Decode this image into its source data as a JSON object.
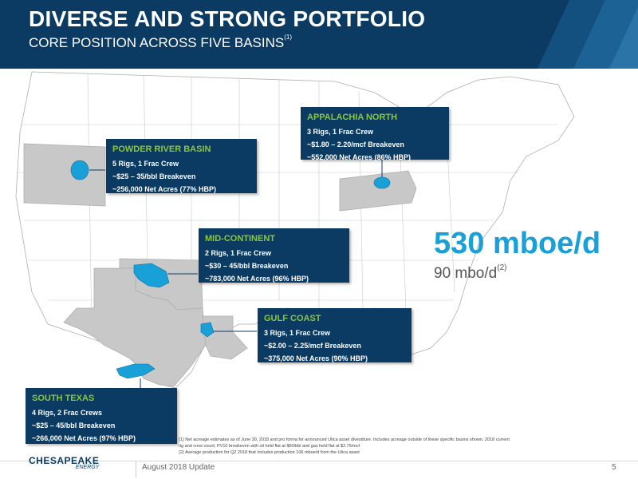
{
  "header": {
    "title": "DIVERSE AND STRONG PORTFOLIO",
    "subtitle": "CORE POSITION ACROSS FIVE BASINS",
    "subtitle_note": "(1)"
  },
  "colors": {
    "navy": "#0b3a63",
    "accent_green": "#8cc63f",
    "accent_blue": "#1aa0d8",
    "state_highlight": "#c8c8c8"
  },
  "basins": [
    {
      "name": "APPALACHIA NORTH",
      "lines": [
        "3 Rigs, 1 Frac Crew",
        "~$1.80 – 2.20/mcf Breakeven",
        "~552,000 Net Acres (86% HBP)"
      ]
    },
    {
      "name": "POWDER RIVER BASIN",
      "lines": [
        "5 Rigs, 1 Frac Crew",
        "~$25 – 35/bbl Breakeven",
        "~256,000 Net Acres (77% HBP)"
      ]
    },
    {
      "name": "MID-CONTINENT",
      "lines": [
        "2 Rigs, 1 Frac Crew",
        "~$30 – 45/bbl Breakeven",
        "~783,000 Net Acres (96% HBP)"
      ]
    },
    {
      "name": "GULF COAST",
      "lines": [
        "3 Rigs, 1 Frac Crew",
        "~$2.00 – 2.25/mcf Breakeven",
        "~375,000 Net Acres (90% HBP)"
      ]
    },
    {
      "name": "SOUTH TEXAS",
      "lines": [
        "4 Rigs, 2 Frac Crews",
        "~$25 – 45/bbl Breakeven",
        "~266,000 Net Acres (97% HBP)"
      ]
    }
  ],
  "production": {
    "total": "530 mboe/d",
    "oil": "90 mbo/d",
    "oil_note": "(2)"
  },
  "footnotes": [
    "(1)  Net acreage estimates as of June 30, 2018 and pro forma for announced Utica asset divestiture. Includes acreage outside of these specific basins shown. 2018 current rig and crew count; PV10 breakeven with oil held flat at $60/bbl and gas held flat at $2.75/mcf",
    "(2)  Average production for Q2 2018 that includes production 106 mboe/d from the Utica asset"
  ],
  "footer": {
    "logo_main": "CHESAPEAKE",
    "logo_sub": "ENERGY",
    "update": "August 2018 Update",
    "page": "5"
  }
}
